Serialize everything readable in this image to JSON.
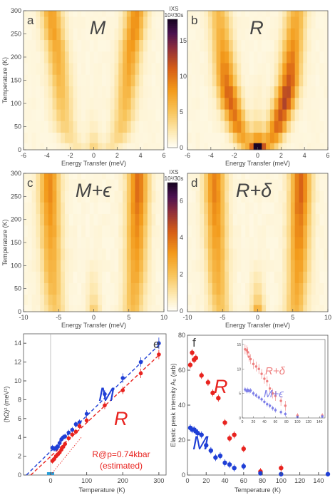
{
  "colors": {
    "M": "#1f3fd6",
    "R": "#e8231f",
    "R_light": "#ee7f7f",
    "M_light": "#7d7ee8",
    "heat_low": "#fffdf0",
    "heat_mid": "#f39a1a",
    "heat_high": "#2a0838",
    "axis": "#555555"
  },
  "chart_data": [
    {
      "type": "heatmap",
      "panel": "a",
      "title": "M",
      "xlabel": "Energy Transfer (meV)",
      "ylabel": "Temperature (K)",
      "xlim": [
        -6,
        6
      ],
      "ylim": [
        0,
        300
      ],
      "x_ticks": [
        -6,
        -4,
        -2,
        0,
        2,
        4,
        6
      ],
      "y_ticks": [
        0,
        50,
        100,
        150,
        200,
        250,
        300
      ],
      "temperature_rows": [
        5,
        25,
        50,
        75,
        100,
        125,
        150,
        175,
        200,
        225,
        250,
        275,
        300
      ],
      "branch_energy_meV": [
        1.5,
        2.1,
        2.4,
        2.6,
        2.7,
        2.8,
        2.9,
        3.0,
        3.1,
        3.2,
        3.4,
        3.5,
        3.6
      ],
      "branch_intensity": [
        2,
        3,
        4,
        4.5,
        5,
        5.5,
        6,
        6.5,
        7,
        7.5,
        8,
        8,
        8
      ],
      "elastic_intensity": [
        3,
        2,
        1,
        0.5,
        0.3,
        0,
        0,
        0,
        0,
        0,
        0,
        0,
        0
      ]
    },
    {
      "type": "heatmap",
      "panel": "b",
      "title": "R",
      "xlabel": "Energy Transfer (meV)",
      "xlim": [
        -6,
        6
      ],
      "ylim": [
        0,
        300
      ],
      "x_ticks": [
        -6,
        -4,
        -2,
        0,
        2,
        4,
        6
      ],
      "colorbar": {
        "label": "IXS",
        "unit": "10²/30s",
        "ticks": [
          0,
          5,
          10,
          15
        ],
        "max": 18
      },
      "temperature_rows": [
        5,
        25,
        50,
        75,
        100,
        125,
        150,
        175,
        200,
        225,
        250,
        275,
        300
      ],
      "branch_energy_meV": [
        0.9,
        1.3,
        1.7,
        2.0,
        2.3,
        2.5,
        2.7,
        2.8,
        2.9,
        3.0,
        3.1,
        3.2,
        3.3
      ],
      "branch_intensity": [
        6,
        8,
        10,
        11,
        12,
        12,
        11,
        10,
        9,
        8,
        7,
        6.5,
        6
      ],
      "elastic_intensity": [
        17,
        6,
        3,
        1.5,
        0.8,
        0.5,
        0.3,
        0,
        0,
        0,
        0,
        0,
        0
      ]
    },
    {
      "type": "heatmap",
      "panel": "c",
      "title": "M+ϵ",
      "xlabel": "Energy Transfer (meV)",
      "ylabel": "Temperature (K)",
      "xlim": [
        -10,
        10
      ],
      "ylim": [
        0,
        300
      ],
      "x_ticks": [
        -10,
        -5,
        0,
        5,
        10
      ],
      "y_ticks": [
        0,
        50,
        100,
        150,
        200,
        250,
        300
      ],
      "temperature_rows": [
        5,
        25,
        50,
        75,
        100,
        125,
        150,
        175,
        200,
        225,
        250,
        275,
        300
      ],
      "branch_energy_meV": [
        5.6,
        5.7,
        5.8,
        5.9,
        6.0,
        6.0,
        6.1,
        6.1,
        6.2,
        6.2,
        6.3,
        6.3,
        6.3
      ],
      "branch_intensity": [
        2,
        2.2,
        2.4,
        2.6,
        2.8,
        3,
        3.2,
        3.4,
        3.6,
        3.8,
        4,
        4,
        4
      ],
      "elastic_intensity": [
        1.5,
        1,
        0.7,
        0.5,
        0.3,
        0,
        0,
        0,
        0,
        0,
        0,
        0,
        0
      ]
    },
    {
      "type": "heatmap",
      "panel": "d",
      "title": "R+δ",
      "xlabel": "Energy Transfer (meV)",
      "xlim": [
        -10,
        10
      ],
      "ylim": [
        0,
        300
      ],
      "x_ticks": [
        -10,
        -5,
        0,
        5,
        10
      ],
      "colorbar": {
        "label": "IXS",
        "unit": "10²/30s",
        "ticks": [
          0,
          2,
          4,
          6
        ],
        "max": 7
      },
      "temperature_rows": [
        5,
        25,
        50,
        75,
        100,
        125,
        150,
        175,
        200,
        225,
        250,
        275,
        300
      ],
      "branch_energy_meV": [
        5.4,
        5.5,
        5.6,
        5.7,
        5.8,
        5.8,
        5.9,
        5.9,
        6.0,
        6.0,
        6.1,
        6.1,
        6.1
      ],
      "branch_intensity": [
        2.2,
        2.4,
        2.6,
        2.8,
        3,
        3.2,
        3.4,
        3.6,
        3.8,
        4,
        4.2,
        4.2,
        4.2
      ],
      "elastic_intensity": [
        2.5,
        1.5,
        1,
        0.6,
        0.3,
        0,
        0,
        0,
        0,
        0,
        0,
        0,
        0
      ]
    },
    {
      "type": "scatter",
      "panel": "e",
      "xlabel": "Temperature (K)",
      "ylabel": "(ħΩ)² (meV²)",
      "xlim": [
        -75,
        320
      ],
      "ylim": [
        0,
        15
      ],
      "x_ticks": [
        0,
        100,
        200,
        300
      ],
      "y_ticks": [
        0,
        2,
        4,
        6,
        8,
        10,
        12,
        14
      ],
      "series": [
        {
          "name": "M",
          "x": [
            5,
            10,
            15,
            20,
            25,
            30,
            35,
            40,
            50,
            60,
            70,
            80,
            100,
            150,
            200,
            250,
            300
          ],
          "y": [
            2.9,
            2.8,
            2.8,
            3.0,
            3.4,
            3.8,
            4.0,
            4.1,
            4.5,
            4.8,
            5.4,
            5.6,
            6.5,
            8.6,
            10.3,
            12.0,
            14.0
          ],
          "err": [
            0.3,
            0.3,
            0.3,
            0.3,
            0.3,
            0.3,
            0.3,
            0.3,
            0.3,
            0.3,
            0.3,
            0.3,
            0.4,
            0.4,
            0.5,
            0.5,
            0.6
          ]
        },
        {
          "name": "R",
          "x": [
            5,
            10,
            15,
            20,
            25,
            30,
            35,
            40,
            50,
            60,
            70,
            80,
            100,
            150,
            200,
            250,
            300
          ],
          "y": [
            1.5,
            1.7,
            2.0,
            2.2,
            2.4,
            2.7,
            3.0,
            3.3,
            3.9,
            4.3,
            4.6,
            5.2,
            5.8,
            7.4,
            9.0,
            10.8,
            12.8
          ],
          "err": [
            0.3,
            0.3,
            0.3,
            0.3,
            0.3,
            0.3,
            0.3,
            0.3,
            0.3,
            0.3,
            0.3,
            0.3,
            0.3,
            0.4,
            0.4,
            0.5,
            0.5
          ]
        }
      ],
      "fits": [
        {
          "series": "M",
          "x0": -67,
          "x1": 305,
          "y0": 0,
          "y1": 14.0
        },
        {
          "series": "R",
          "x0": -55,
          "x1": 305,
          "y0": 0,
          "y1": 12.9
        },
        {
          "series": "R@p",
          "x0": 0,
          "x1": 85,
          "y0": 0,
          "y1": 4.0
        }
      ],
      "highlight_x": 0,
      "highlight_range": [
        -10,
        10
      ],
      "annotations": [
        "R@p=0.74kbar",
        "(estimated)"
      ],
      "series_labels": [
        "M",
        "R"
      ]
    },
    {
      "type": "scatter",
      "panel": "f",
      "xlabel": "Temperature (K)",
      "ylabel": "Elastic peak intensity A₀ (arb)",
      "xlim": [
        0,
        150
      ],
      "ylim": [
        0,
        80
      ],
      "x_ticks": [
        0,
        20,
        40,
        60,
        80,
        100,
        120,
        140
      ],
      "y_ticks": [
        0,
        20,
        40,
        60,
        80
      ],
      "series": [
        {
          "name": "R",
          "x": [
            3,
            5,
            7,
            9,
            15,
            22,
            27,
            33,
            40,
            45,
            50,
            60,
            78,
            100
          ],
          "y": [
            63,
            70,
            66,
            67,
            57,
            53,
            47,
            44,
            30,
            21,
            23,
            15,
            2,
            4
          ],
          "err": [
            2,
            2,
            2,
            2,
            2,
            2,
            2,
            2,
            2,
            2,
            2,
            2,
            2,
            2
          ]
        },
        {
          "name": "M",
          "x": [
            3,
            5,
            7,
            9,
            11,
            15,
            20,
            25,
            30,
            35,
            40,
            45,
            50,
            60,
            78,
            100,
            150
          ],
          "y": [
            27,
            26,
            26,
            25,
            24,
            23,
            17,
            14,
            10,
            11,
            7,
            6,
            4,
            5,
            1,
            0.5,
            0.5
          ],
          "err": [
            2,
            2,
            2,
            2,
            2,
            2,
            2,
            2,
            2,
            2,
            2,
            2,
            2,
            2,
            1,
            1,
            1
          ]
        }
      ],
      "series_labels": [
        "R",
        "M"
      ],
      "inset": {
        "xlim": [
          0,
          150
        ],
        "ylim": [
          0,
          16
        ],
        "x_ticks": [
          0,
          20,
          40,
          60,
          80,
          100,
          120,
          140
        ],
        "y_ticks": [
          0,
          5,
          10,
          15
        ],
        "series": [
          {
            "name": "R+δ",
            "x": [
              5,
              8,
              10,
              12,
              15,
              20,
              25,
              30,
              35,
              40,
              45,
              50,
              55,
              60,
              70,
              78,
              100,
              145
            ],
            "y": [
              14,
              13.8,
              13.4,
              12.5,
              12,
              11,
              10.5,
              10,
              9,
              8,
              7.5,
              6,
              5,
              4.5,
              3.5,
              2.5,
              0.5,
              0.5
            ],
            "err": [
              1,
              1,
              1,
              1,
              1,
              1,
              1,
              1,
              1,
              1,
              1,
              1,
              1,
              1,
              1,
              1,
              0.5,
              0.5
            ]
          },
          {
            "name": "M+ϵ",
            "x": [
              5,
              8,
              10,
              12,
              15,
              20,
              25,
              30,
              35,
              40,
              45,
              50,
              55,
              60,
              70,
              78,
              100,
              145
            ],
            "y": [
              5.8,
              5.5,
              5.7,
              5.5,
              5.6,
              5,
              4.6,
              4.2,
              3.8,
              3.3,
              2.8,
              2.5,
              2,
              1.6,
              1.2,
              0.8,
              0.2,
              0.3
            ],
            "err": [
              0.5,
              0.5,
              0.5,
              0.5,
              0.5,
              0.5,
              0.5,
              0.5,
              0.5,
              0.5,
              0.5,
              0.5,
              0.5,
              0.5,
              0.5,
              0.5,
              0.3,
              0.3
            ]
          }
        ],
        "series_labels": [
          "R+δ",
          "M+ϵ"
        ]
      }
    }
  ]
}
